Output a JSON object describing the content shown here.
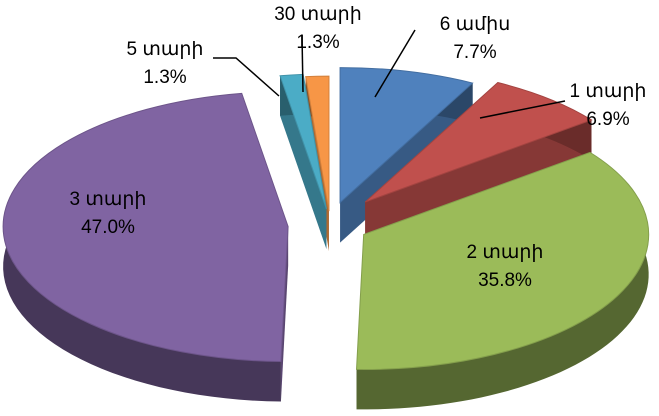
{
  "chart_data": {
    "type": "pie",
    "variant": "3d-exploded",
    "title": "",
    "slices": [
      {
        "label": "6 ամիս",
        "value": 7.7,
        "value_text": "7.7%",
        "color": "#4F81BD"
      },
      {
        "label": "1 տարի",
        "value": 6.9,
        "value_text": "6.9%",
        "color": "#C0504D"
      },
      {
        "label": "2 տարի",
        "value": 35.8,
        "value_text": "35.8%",
        "color": "#9BBB59"
      },
      {
        "label": "3 տարի",
        "value": 47.0,
        "value_text": "47.0%",
        "color": "#8064A2"
      },
      {
        "label": "5 տարի",
        "value": 1.3,
        "value_text": "1.3%",
        "color": "#4BACC6"
      },
      {
        "label": "30 տարի",
        "value": 1.3,
        "value_text": "1.3%",
        "color": "#F79646"
      }
    ]
  }
}
